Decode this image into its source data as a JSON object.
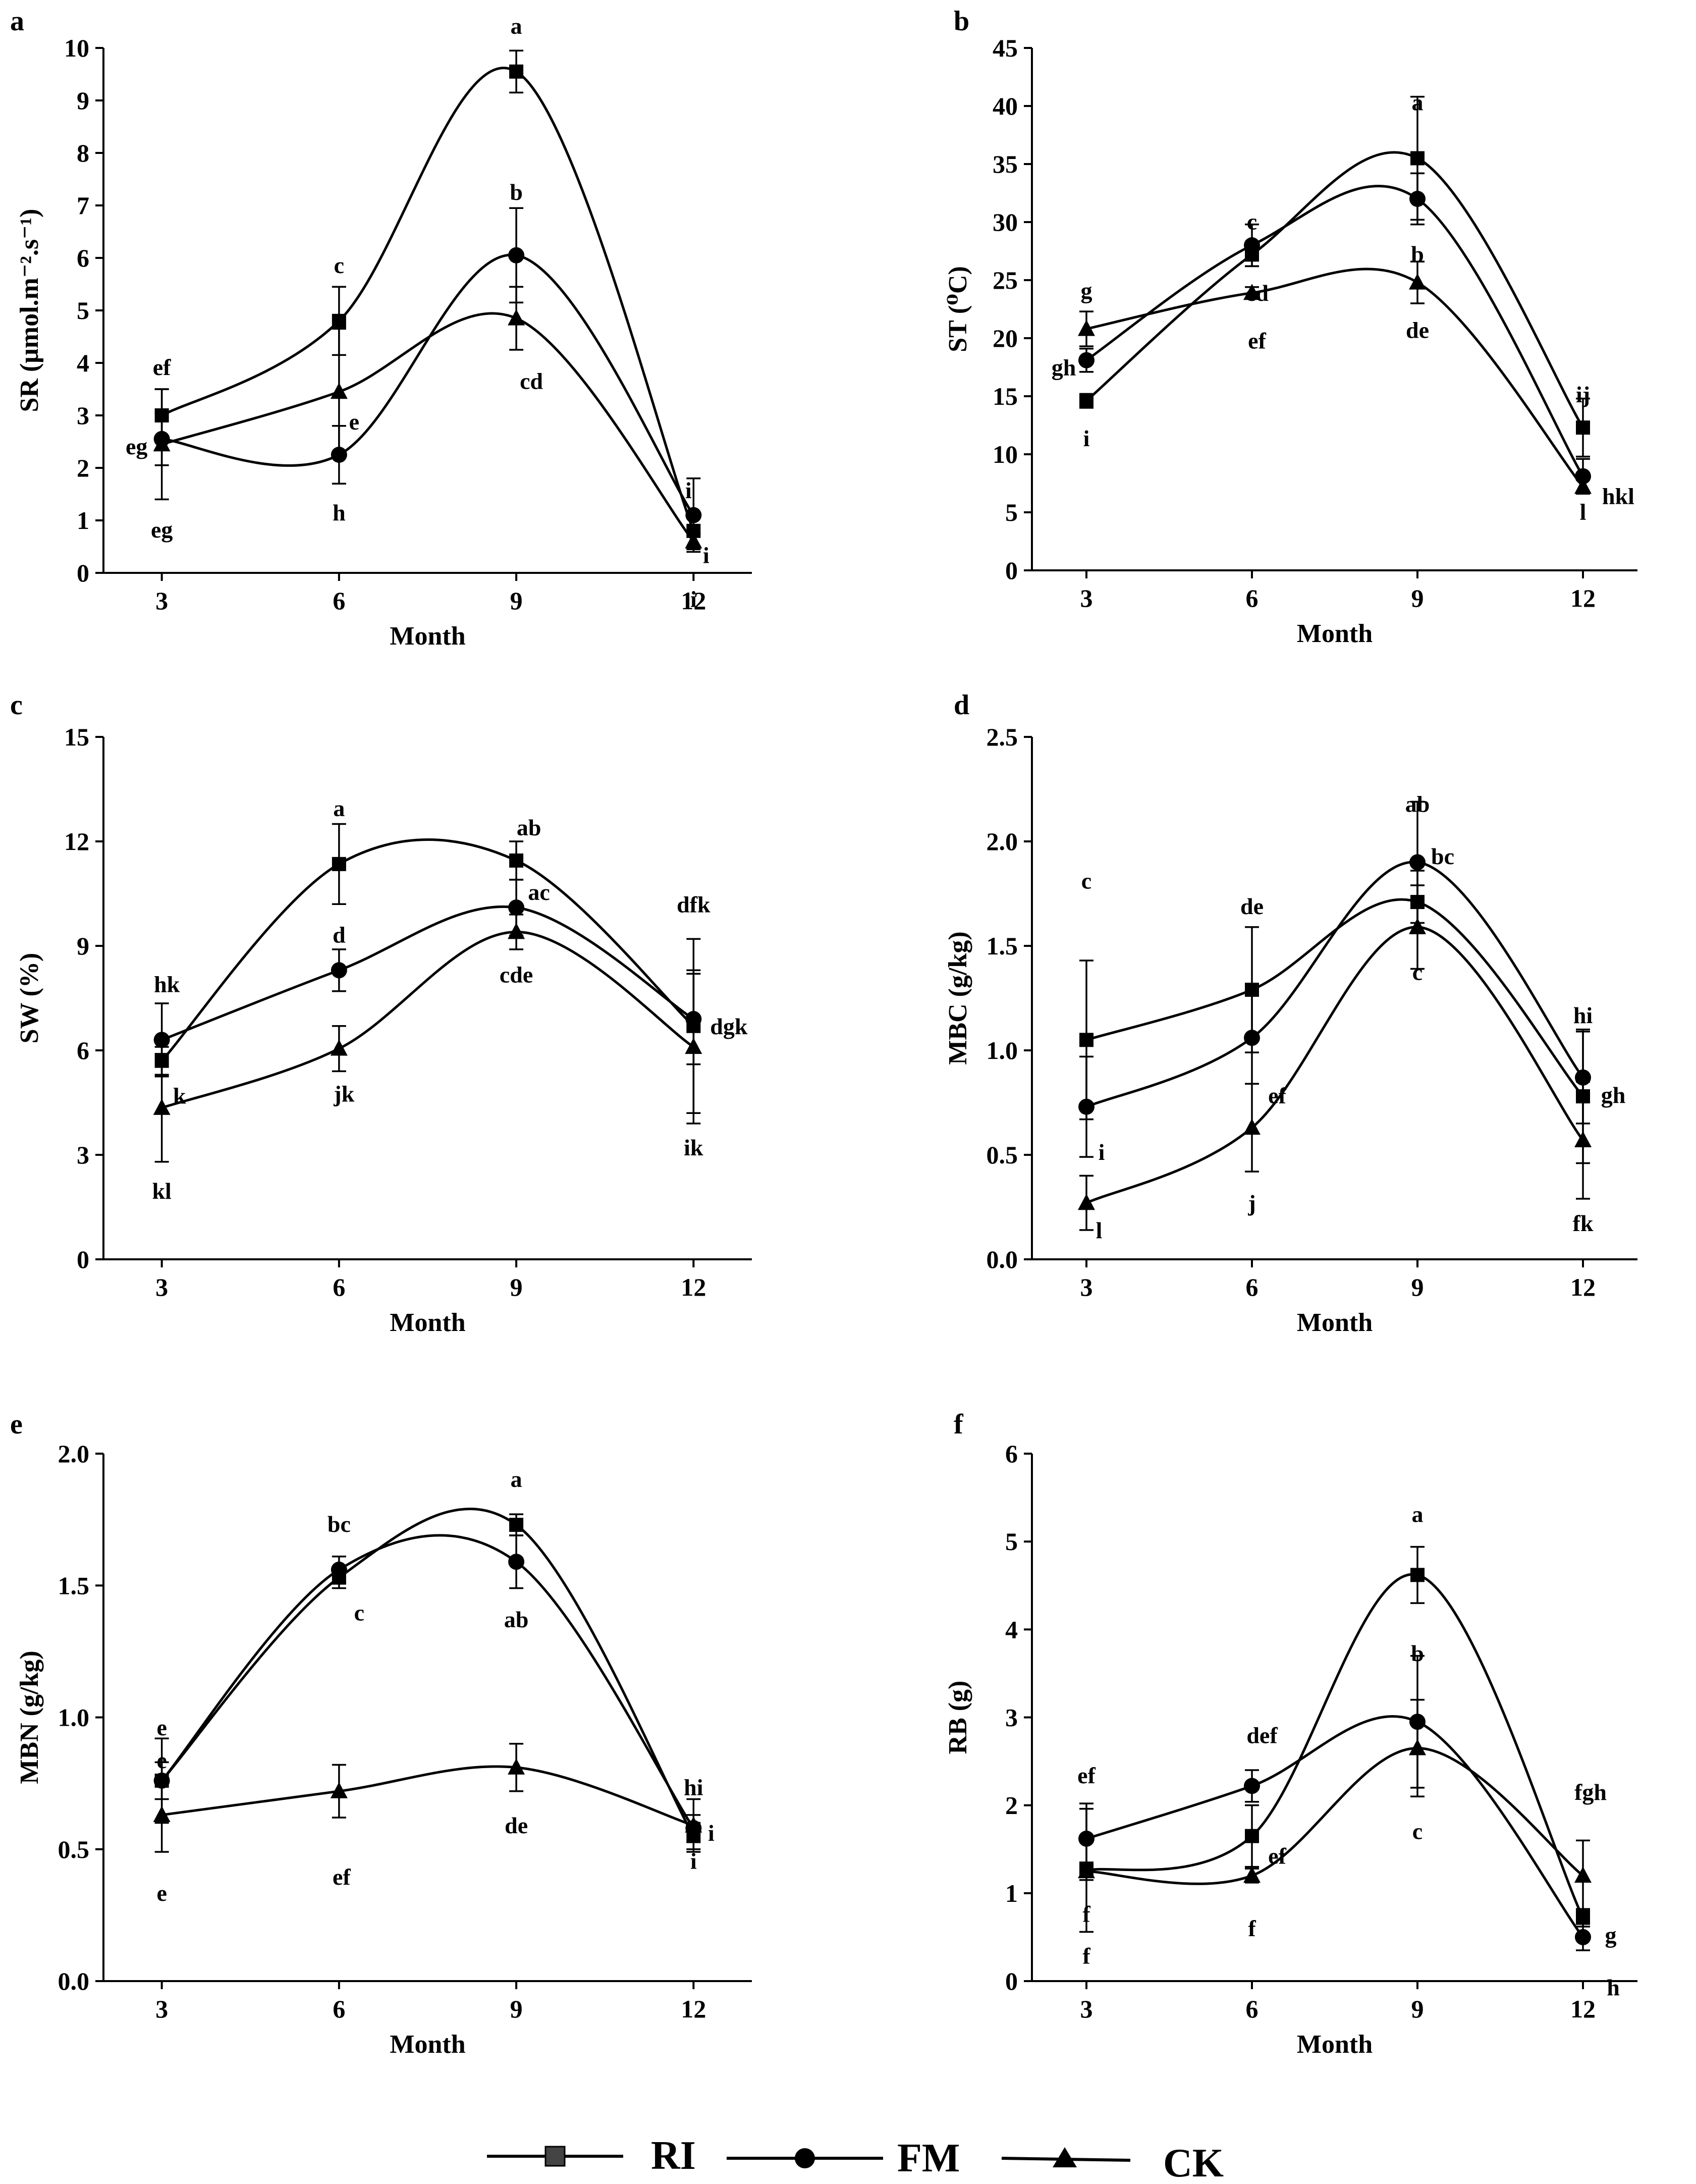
{
  "legend": {
    "series": [
      {
        "name": "RI",
        "marker": "square",
        "label": "RI"
      },
      {
        "name": "FM",
        "marker": "circle",
        "label": "FM"
      },
      {
        "name": "CK",
        "marker": "triangle",
        "label": "CK"
      }
    ]
  },
  "colors": {
    "line": "#000000",
    "background": "#ffffff"
  },
  "chart_data": [
    {
      "panel": "a",
      "type": "line",
      "xlabel": "Month",
      "ylabel": "SR (μmol.m⁻².s⁻¹)",
      "categories": [
        3,
        6,
        9,
        12
      ],
      "ylim": [
        0,
        10
      ],
      "yticks": [
        0,
        1,
        2,
        3,
        4,
        5,
        6,
        7,
        8,
        9,
        10
      ],
      "ytick_labels": [
        "0",
        "1",
        "2",
        "3",
        "4",
        "5",
        "6",
        "7",
        "8",
        "9",
        "10"
      ],
      "series": [
        {
          "name": "RI",
          "marker": "square",
          "values": [
            3.0,
            4.8,
            9.55,
            0.8
          ],
          "errors": [
            0.5,
            0.65,
            0.4,
            0.3
          ],
          "labels": [
            "ef",
            "c",
            "a",
            "i"
          ]
        },
        {
          "name": "FM",
          "marker": "circle",
          "values": [
            2.55,
            2.25,
            6.05,
            1.1
          ],
          "errors": [
            0.5,
            0.55,
            0.9,
            0.7
          ],
          "labels": [
            "eg",
            "h",
            "b",
            "i"
          ]
        },
        {
          "name": "CK",
          "marker": "triangle",
          "values": [
            2.45,
            3.45,
            4.85,
            0.6
          ],
          "errors": [
            1.05,
            1.2,
            0.6,
            0.15
          ],
          "labels": [
            "eg",
            "e",
            "cd",
            "i"
          ]
        }
      ]
    },
    {
      "panel": "b",
      "type": "line",
      "xlabel": "Month",
      "ylabel": "ST (⁰C)",
      "categories": [
        3,
        6,
        9,
        12
      ],
      "ylim": [
        0,
        45
      ],
      "yticks": [
        0,
        5,
        10,
        15,
        20,
        25,
        30,
        35,
        40,
        45
      ],
      "ytick_labels": [
        "0",
        "5",
        "10",
        "15",
        "20",
        "25",
        "30",
        "35",
        "40",
        "45"
      ],
      "series": [
        {
          "name": "RI",
          "marker": "square",
          "values": [
            14.6,
            27.2,
            35.5,
            12.3
          ],
          "errors": [
            0.6,
            1.0,
            5.3,
            2.5
          ],
          "labels": [
            "i",
            "c",
            "a",
            "ij"
          ]
        },
        {
          "name": "FM",
          "marker": "circle",
          "values": [
            18.1,
            28.0,
            32.0,
            8.1
          ],
          "errors": [
            1.0,
            1.8,
            2.2,
            1.5
          ],
          "labels": [
            "gh",
            "cd",
            "b",
            "hkl"
          ]
        },
        {
          "name": "CK",
          "marker": "triangle",
          "values": [
            20.8,
            23.9,
            24.8,
            7.2
          ],
          "errors": [
            1.5,
            0.5,
            1.8,
            0.6
          ],
          "labels": [
            "g",
            "ef",
            "de",
            "l"
          ]
        }
      ]
    },
    {
      "panel": "c",
      "type": "line",
      "xlabel": "Month",
      "ylabel": "SW (%)",
      "categories": [
        3,
        6,
        9,
        12
      ],
      "ylim": [
        0,
        15
      ],
      "yticks": [
        0,
        3,
        6,
        9,
        12,
        15
      ],
      "ytick_labels": [
        "0",
        "3",
        "6",
        "9",
        "12",
        "15"
      ],
      "series": [
        {
          "name": "RI",
          "marker": "square",
          "values": [
            5.7,
            11.35,
            11.45,
            6.7
          ],
          "errors": [
            0.4,
            1.15,
            0.55,
            2.5
          ],
          "labels": [
            "k",
            "a",
            "ab",
            "dfk"
          ]
        },
        {
          "name": "FM",
          "marker": "circle",
          "values": [
            6.3,
            8.3,
            10.1,
            6.9
          ],
          "errors": [
            1.05,
            0.6,
            0.8,
            1.3
          ],
          "labels": [
            "hk",
            "d",
            "ac",
            "dgk"
          ]
        },
        {
          "name": "CK",
          "marker": "triangle",
          "values": [
            4.35,
            6.05,
            9.4,
            6.1
          ],
          "errors": [
            1.55,
            0.65,
            0.5,
            2.2
          ],
          "labels": [
            "kl",
            "jk",
            "cde",
            "ik"
          ]
        }
      ]
    },
    {
      "panel": "d",
      "type": "line",
      "xlabel": "Month",
      "ylabel": "MBC (g/kg)",
      "categories": [
        3,
        6,
        9,
        12
      ],
      "ylim": [
        0,
        2.5
      ],
      "yticks": [
        0,
        0.5,
        1.0,
        1.5,
        2.0,
        2.5
      ],
      "ytick_labels": [
        "0.0",
        "0.5",
        "1.0",
        "1.5",
        "2.0",
        "2.5"
      ],
      "series": [
        {
          "name": "RI",
          "marker": "square",
          "values": [
            1.05,
            1.29,
            1.71,
            0.78
          ],
          "errors": [
            0.38,
            0.3,
            0.15,
            0.32
          ],
          "labels": [
            "c",
            "de",
            "bc",
            "hi"
          ]
        },
        {
          "name": "FM",
          "marker": "circle",
          "values": [
            0.73,
            1.06,
            1.9,
            0.87
          ],
          "errors": [
            0.24,
            0.22,
            0.29,
            0.22
          ],
          "labels": [
            "i",
            "ef",
            "ab",
            "gh"
          ]
        },
        {
          "name": "CK",
          "marker": "triangle",
          "values": [
            0.27,
            0.63,
            1.59,
            0.57
          ],
          "errors": [
            0.13,
            0.21,
            0.2,
            0.28
          ],
          "labels": [
            "l",
            "j",
            "c",
            "fk"
          ]
        }
      ]
    },
    {
      "panel": "e",
      "type": "line",
      "xlabel": "Month",
      "ylabel": "MBN (g/kg)",
      "categories": [
        3,
        6,
        9,
        12
      ],
      "ylim": [
        0,
        2.0
      ],
      "yticks": [
        0,
        0.5,
        1.0,
        1.5,
        2.0
      ],
      "ytick_labels": [
        "0.0",
        "0.5",
        "1.0",
        "1.5",
        "2.0"
      ],
      "series": [
        {
          "name": "RI",
          "marker": "square",
          "values": [
            0.76,
            1.53,
            1.73,
            0.55
          ],
          "errors": [
            0.07,
            0.04,
            0.04,
            0.05
          ],
          "labels": [
            "e",
            "c",
            "a",
            "i"
          ]
        },
        {
          "name": "FM",
          "marker": "circle",
          "values": [
            0.76,
            1.56,
            1.59,
            0.58
          ],
          "errors": [
            0.16,
            0.05,
            0.1,
            0.05
          ],
          "labels": [
            "e",
            "bc",
            "ab",
            "i"
          ]
        },
        {
          "name": "CK",
          "marker": "triangle",
          "values": [
            0.63,
            0.72,
            0.81,
            0.59
          ],
          "errors": [
            0.14,
            0.1,
            0.09,
            0.1
          ],
          "labels": [
            "e",
            "ef",
            "de",
            "hi"
          ]
        }
      ]
    },
    {
      "panel": "f",
      "type": "line",
      "xlabel": "Month",
      "ylabel": "RB (g)",
      "categories": [
        3,
        6,
        9,
        12
      ],
      "ylim": [
        0,
        6
      ],
      "yticks": [
        0,
        1,
        2,
        3,
        4,
        5,
        6
      ],
      "ytick_labels": [
        "0",
        "1",
        "2",
        "3",
        "4",
        "5",
        "6"
      ],
      "series": [
        {
          "name": "RI",
          "marker": "square",
          "values": [
            1.26,
            1.65,
            4.62,
            0.72
          ],
          "errors": [
            0.7,
            0.35,
            0.32,
            0.1
          ],
          "labels": [
            "f",
            "ef",
            "a",
            "g"
          ]
        },
        {
          "name": "FM",
          "marker": "circle",
          "values": [
            1.62,
            2.22,
            2.95,
            0.5
          ],
          "errors": [
            0.4,
            0.18,
            0.75,
            0.15
          ],
          "labels": [
            "ef",
            "def",
            "b",
            "h"
          ]
        },
        {
          "name": "CK",
          "marker": "triangle",
          "values": [
            1.25,
            1.2,
            2.65,
            1.2
          ],
          "errors": [
            0.1,
            0.08,
            0.55,
            0.4
          ],
          "labels": [
            "f",
            "f",
            "c",
            "fgh"
          ]
        }
      ]
    }
  ]
}
